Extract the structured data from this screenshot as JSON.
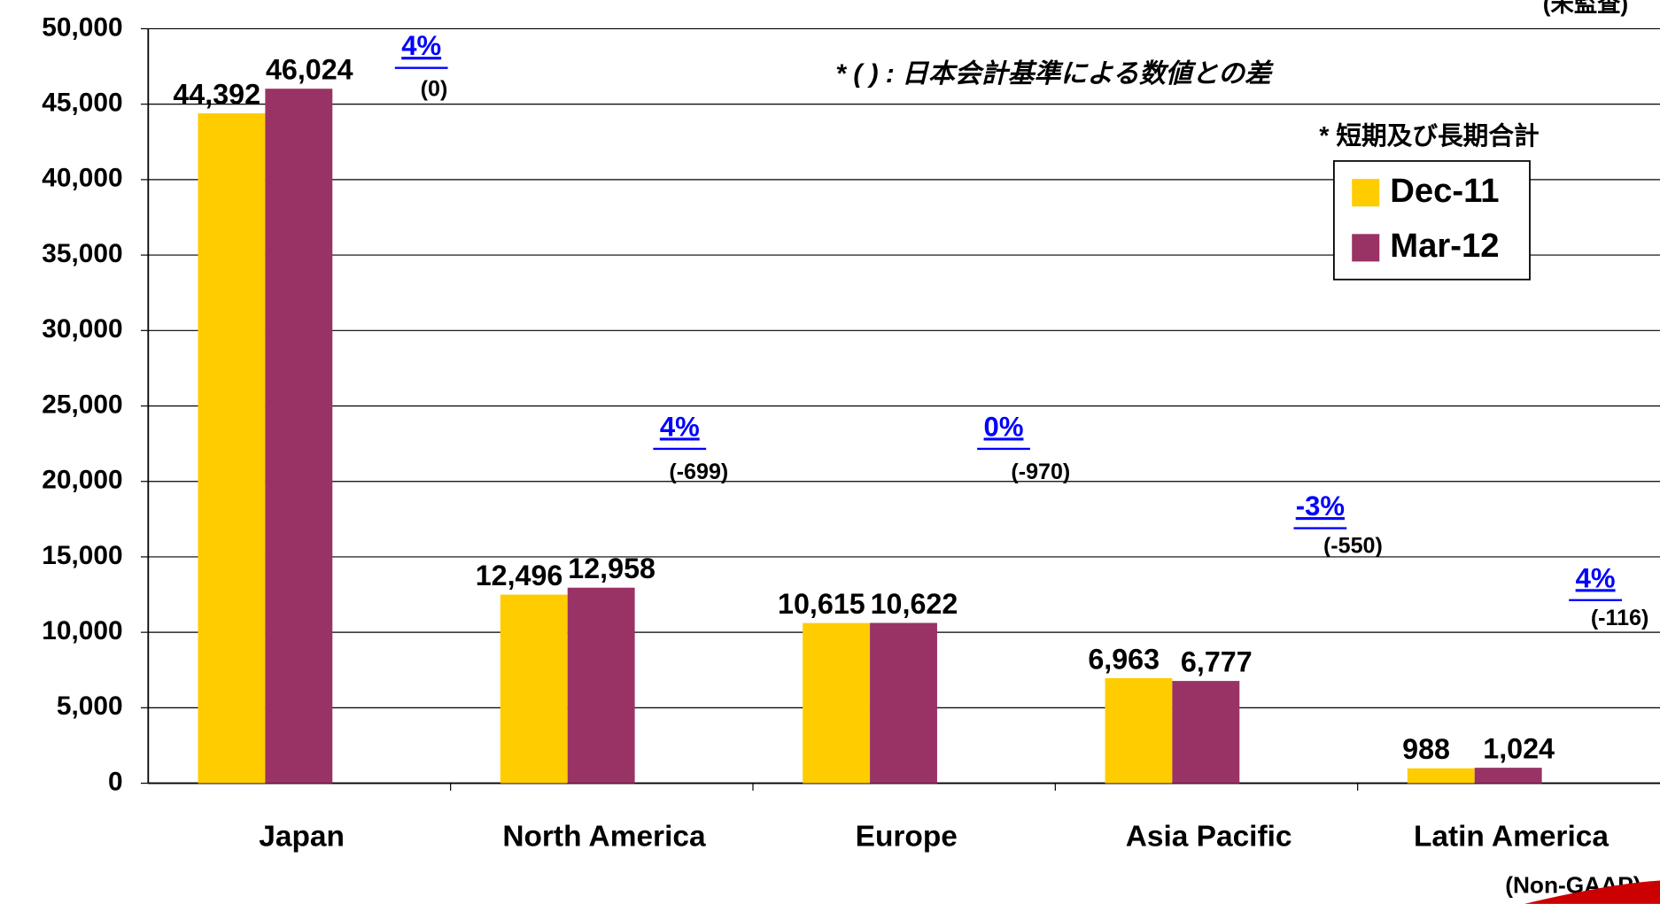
{
  "chart_data": {
    "type": "bar",
    "categories": [
      "Japan",
      "North America",
      "Europe",
      "Asia Pacific",
      "Latin America"
    ],
    "series": [
      {
        "name": "Dec-11",
        "color": "#ffcc00",
        "values": [
          44392,
          12496,
          10615,
          6963,
          988
        ],
        "value_labels": [
          "44,392",
          "12,496",
          "10,615",
          "6,963",
          "988"
        ]
      },
      {
        "name": "Mar-12",
        "color": "#993366",
        "values": [
          46024,
          12958,
          10622,
          6777,
          1024
        ],
        "value_labels": [
          "46,024",
          "12,958",
          "10,622",
          "6,777",
          "1,024"
        ]
      }
    ],
    "ylim": [
      0,
      50000
    ],
    "yticks": [
      0,
      {
        "value": 5000,
        "label": "5,000"
      },
      {
        "value": 10000,
        "label": "10,000"
      },
      {
        "value": 15000,
        "label": "15,000"
      },
      {
        "value": 20000,
        "label": "20,000"
      },
      {
        "value": 25000,
        "label": "25,000"
      },
      {
        "value": 30000,
        "label": "30,000"
      },
      {
        "value": 35000,
        "label": "35,000"
      },
      {
        "value": 40000,
        "label": "40,000"
      },
      {
        "value": 45000,
        "label": "45,000"
      },
      {
        "value": 50000,
        "label": "50,000"
      }
    ],
    "grid": true,
    "annotations": [
      {
        "change": "4%",
        "difference": "(0)"
      },
      {
        "change": "4%",
        "difference": "(-699)"
      },
      {
        "change": "0%",
        "difference": "(-970)"
      },
      {
        "change": "-3%",
        "difference": "(-550)"
      },
      {
        "change": "4%",
        "difference": "(-116)"
      }
    ],
    "notes": [
      "* ( ) : 日本会計基準による数値との差",
      "* 短期及び長期合計",
      "(未監査)",
      "(Non-GAAP)"
    ]
  }
}
